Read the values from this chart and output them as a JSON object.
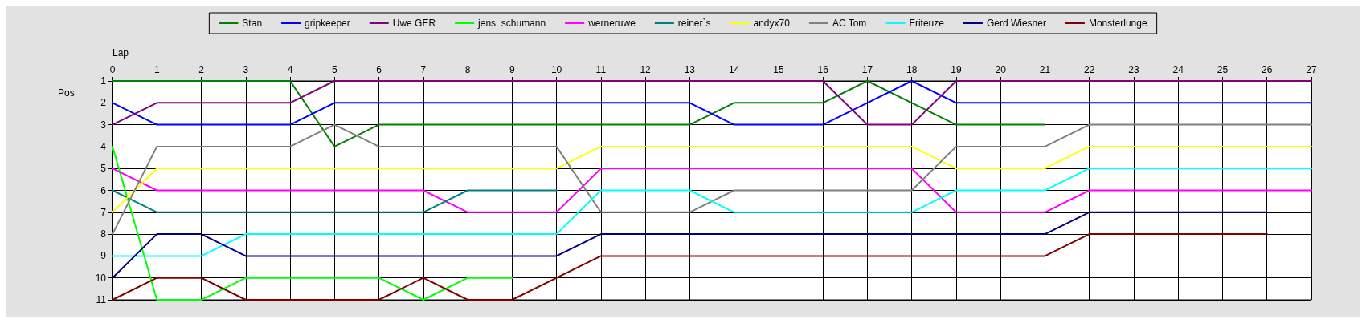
{
  "chart_data": {
    "type": "line",
    "xlabel": "Lap",
    "ylabel": "Pos",
    "x": [
      0,
      1,
      2,
      3,
      4,
      5,
      6,
      7,
      8,
      9,
      10,
      11,
      12,
      13,
      14,
      15,
      16,
      17,
      18,
      19,
      20,
      21,
      22,
      23,
      24,
      25,
      26,
      27
    ],
    "series": [
      {
        "name": "Stan",
        "color": "#008000",
        "values": [
          1,
          1,
          1,
          1,
          1,
          4,
          3,
          3,
          3,
          3,
          3,
          3,
          3,
          3,
          2,
          2,
          2,
          1,
          2,
          3,
          3,
          3,
          null,
          null,
          null,
          null,
          null,
          null
        ]
      },
      {
        "name": "gripkeeper",
        "color": "#0000ff",
        "values": [
          2,
          3,
          3,
          3,
          3,
          2,
          2,
          2,
          2,
          2,
          2,
          2,
          2,
          2,
          3,
          3,
          3,
          2,
          1,
          2,
          2,
          2,
          2,
          2,
          2,
          2,
          2,
          2
        ]
      },
      {
        "name": "Uwe GER",
        "color": "#800080",
        "values": [
          3,
          2,
          2,
          2,
          2,
          1,
          1,
          1,
          1,
          1,
          1,
          1,
          1,
          1,
          1,
          1,
          1,
          3,
          3,
          1,
          1,
          1,
          1,
          1,
          1,
          1,
          1,
          1
        ]
      },
      {
        "name": "jens  schumann",
        "color": "#00ff00",
        "values": [
          4,
          11,
          11,
          10,
          10,
          10,
          10,
          11,
          10,
          10,
          null,
          null,
          null,
          null,
          null,
          null,
          null,
          null,
          null,
          null,
          null,
          null,
          null,
          null,
          null,
          null,
          null,
          null
        ]
      },
      {
        "name": "werneruwe",
        "color": "#ff00ff",
        "values": [
          5,
          6,
          6,
          6,
          6,
          6,
          6,
          6,
          7,
          7,
          7,
          5,
          5,
          5,
          5,
          5,
          5,
          5,
          5,
          7,
          7,
          7,
          6,
          6,
          6,
          6,
          6,
          6
        ]
      },
      {
        "name": "reiner`s",
        "color": "#008080",
        "values": [
          6,
          7,
          7,
          7,
          7,
          7,
          7,
          7,
          6,
          6,
          6,
          null,
          null,
          null,
          null,
          null,
          null,
          null,
          null,
          null,
          null,
          null,
          null,
          null,
          null,
          null,
          null,
          null
        ]
      },
      {
        "name": "andyx70",
        "color": "#ffff00",
        "values": [
          7,
          5,
          5,
          5,
          5,
          5,
          5,
          5,
          5,
          5,
          5,
          4,
          4,
          4,
          4,
          4,
          4,
          4,
          4,
          5,
          5,
          5,
          4,
          4,
          4,
          4,
          4,
          4
        ]
      },
      {
        "name": "AC Tom",
        "color": "#808080",
        "values": [
          8,
          4,
          4,
          4,
          4,
          3,
          4,
          4,
          4,
          4,
          4,
          7,
          7,
          7,
          6,
          6,
          6,
          6,
          6,
          4,
          4,
          4,
          3,
          3,
          3,
          3,
          3,
          3
        ]
      },
      {
        "name": "Friteuze",
        "color": "#00ffff",
        "values": [
          9,
          9,
          9,
          8,
          8,
          8,
          8,
          8,
          8,
          8,
          8,
          6,
          6,
          6,
          7,
          7,
          7,
          7,
          7,
          6,
          6,
          6,
          5,
          5,
          5,
          5,
          5,
          5
        ]
      },
      {
        "name": "Gerd Wiesner",
        "color": "#000080",
        "values": [
          10,
          8,
          8,
          9,
          9,
          9,
          9,
          9,
          9,
          9,
          9,
          8,
          8,
          8,
          8,
          8,
          8,
          8,
          8,
          8,
          8,
          8,
          7,
          7,
          7,
          7,
          7,
          null
        ]
      },
      {
        "name": "Monsterlunge",
        "color": "#800000",
        "values": [
          11,
          10,
          10,
          11,
          11,
          11,
          11,
          10,
          11,
          11,
          10,
          9,
          9,
          9,
          9,
          9,
          9,
          9,
          9,
          9,
          9,
          9,
          8,
          8,
          8,
          8,
          8,
          null
        ]
      }
    ],
    "xlim": [
      0,
      27
    ],
    "xticks": [
      0,
      1,
      2,
      3,
      4,
      5,
      6,
      7,
      8,
      9,
      10,
      11,
      12,
      13,
      14,
      15,
      16,
      17,
      18,
      19,
      20,
      21,
      22,
      23,
      24,
      25,
      26,
      27
    ],
    "ylim": [
      11,
      1
    ],
    "yticks": [
      1,
      2,
      3,
      4,
      5,
      6,
      7,
      8,
      9,
      10,
      11
    ],
    "grid": true,
    "legend": "top",
    "marker": "none",
    "line_style": "solid"
  }
}
